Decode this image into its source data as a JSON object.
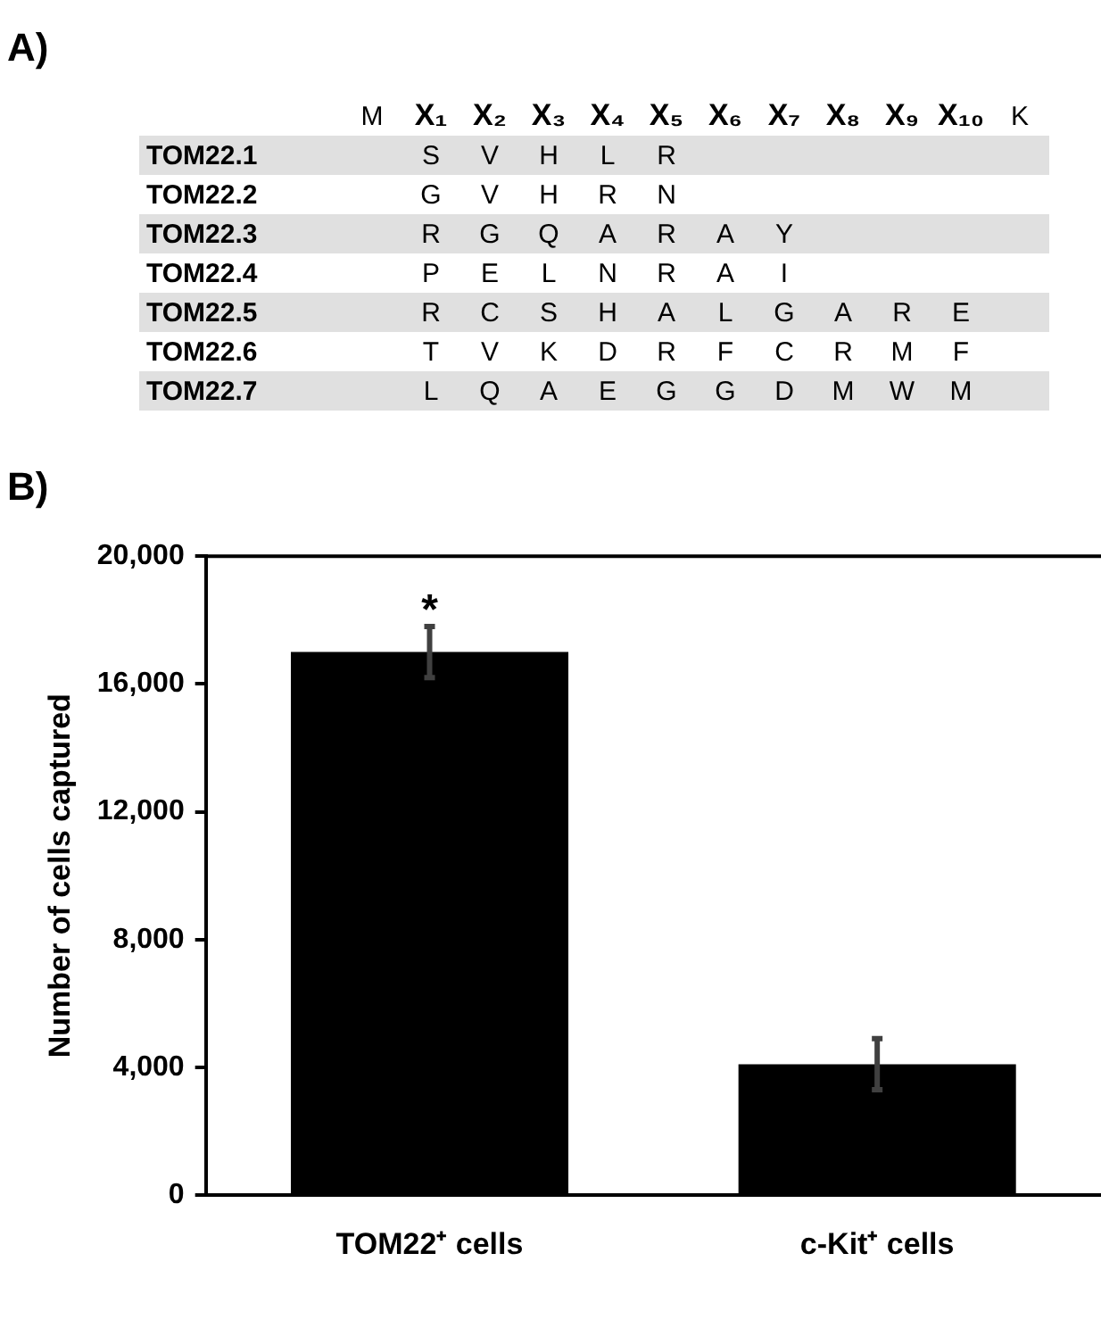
{
  "chart_data": [
    {
      "type": "other",
      "title": "A)",
      "categories": [
        "M",
        "X₁",
        "X₂",
        "X₃",
        "X₄",
        "X₅",
        "X₆",
        "X₇",
        "X₈",
        "X₉",
        "X₁₀",
        "K"
      ],
      "y_categories": [
        "TOM22.1",
        "TOM22.2",
        "TOM22.3",
        "TOM22.4",
        "TOM22.5",
        "TOM22.6",
        "TOM22.7"
      ],
      "cell_labels": [
        [
          null,
          "S",
          "V",
          "H",
          "L",
          "R",
          null,
          null,
          null,
          null,
          null,
          null
        ],
        [
          null,
          "G",
          "V",
          "H",
          "R",
          "N",
          null,
          null,
          null,
          null,
          null,
          null
        ],
        [
          null,
          "R",
          "G",
          "Q",
          "A",
          "R",
          "A",
          "Y",
          null,
          null,
          null,
          null
        ],
        [
          null,
          "P",
          "E",
          "L",
          "N",
          "R",
          "A",
          "I",
          null,
          null,
          null,
          null
        ],
        [
          null,
          "R",
          "C",
          "S",
          "H",
          "A",
          "L",
          "G",
          "A",
          "R",
          "E",
          null
        ],
        [
          null,
          "T",
          "V",
          "K",
          "D",
          "R",
          "F",
          "C",
          "R",
          "M",
          "F",
          null
        ],
        [
          null,
          "L",
          "Q",
          "A",
          "E",
          "G",
          "G",
          "D",
          "M",
          "W",
          "M",
          null
        ]
      ]
    },
    {
      "type": "bar",
      "title": "B)",
      "ylabel": "Number of cells captured",
      "categories": [
        "TOM22⁺ cells",
        "c-Kit⁺ cells"
      ],
      "values": [
        17000,
        4100
      ],
      "errors": [
        800,
        800
      ],
      "color": "#000000",
      "ylim": [
        0,
        20000
      ],
      "yticks": [
        {
          "value": 0,
          "label": "0"
        },
        {
          "value": 4000,
          "label": "4,000"
        },
        {
          "value": 8000,
          "label": "8,000"
        },
        {
          "value": 12000,
          "label": "12,000"
        },
        {
          "value": 16000,
          "label": "16,000"
        },
        {
          "value": 20000,
          "label": "20,000"
        }
      ],
      "grid": false,
      "legend": false,
      "annotations": [
        {
          "text": "*",
          "x": "TOM22⁺ cells",
          "y": 17800
        }
      ]
    }
  ]
}
